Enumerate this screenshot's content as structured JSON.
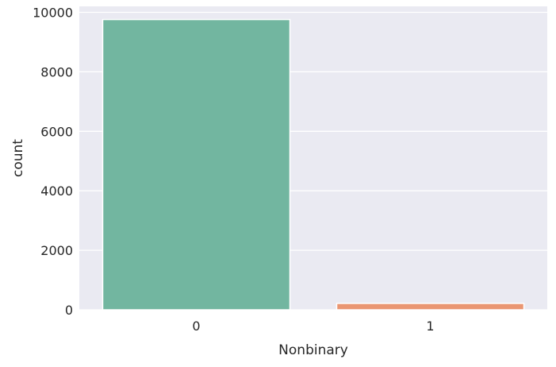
{
  "chart_data": {
    "type": "bar",
    "categories": [
      "0",
      "1"
    ],
    "values": [
      9757,
      215
    ],
    "xlabel": "Nonbinary",
    "ylabel": "count",
    "ylim": [
      0,
      10200
    ],
    "yticks": [
      0,
      2000,
      4000,
      6000,
      8000,
      10000
    ],
    "grid": true,
    "colors": [
      "#72b6a0",
      "#ea9672"
    ],
    "background": "#eaeaf2",
    "grid_color": "#ffffff",
    "text_color": "#262626"
  }
}
